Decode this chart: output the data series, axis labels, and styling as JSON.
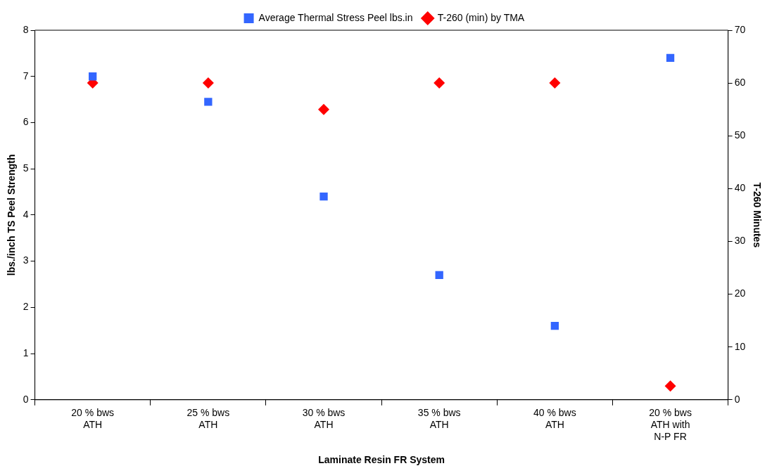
{
  "chart_data": {
    "type": "scatter",
    "xlabel": "Laminate Resin FR System",
    "ylabel": "lbs./inch TS Peel Strength",
    "y2label": "T-260 Minutes",
    "categories": [
      "20 % bws ATH",
      "25 % bws ATH",
      "30 % bws ATH",
      "35 % bws ATH",
      "40 % bws ATH",
      "20 % bws ATH with N-P FR"
    ],
    "series": [
      {
        "name": "Average Thermal Stress Peel lbs.in",
        "color": "#3366ff",
        "marker": "square",
        "values": [
          7.0,
          6.45,
          4.4,
          2.7,
          1.6,
          7.4
        ]
      },
      {
        "name": "T-260 (min) by TMA",
        "color": "#ff0000",
        "marker": "diamond",
        "axis": "y2",
        "values": [
          60,
          60,
          55,
          60,
          60,
          2.6
        ]
      }
    ],
    "ylim": [
      0,
      8
    ],
    "yticks": [
      0,
      1,
      2,
      3,
      4,
      5,
      6,
      7,
      8
    ],
    "y2lim": [
      0,
      70
    ],
    "y2ticks": [
      0,
      10,
      20,
      30,
      40,
      50,
      60,
      70
    ],
    "grid": false,
    "legend": "top"
  }
}
